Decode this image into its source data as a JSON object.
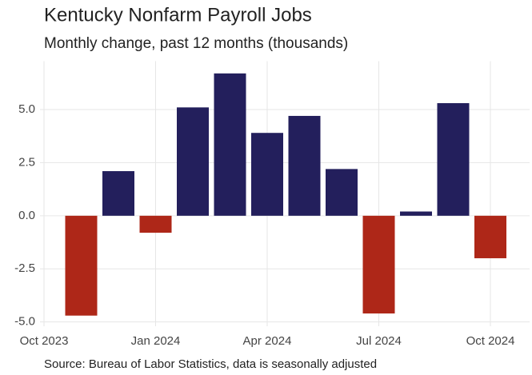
{
  "chart_data": {
    "type": "bar",
    "title": "Kentucky Nonfarm Payroll Jobs",
    "subtitle": "Monthly change, past 12 months (thousands)",
    "caption": "Source: Bureau of Labor Statistics, data is seasonally adjusted",
    "x": [
      "2023-11",
      "2023-12",
      "2024-01",
      "2024-02",
      "2024-03",
      "2024-04",
      "2024-05",
      "2024-06",
      "2024-07",
      "2024-08",
      "2024-09",
      "2024-10"
    ],
    "values": [
      -4.7,
      2.1,
      -0.8,
      5.1,
      6.7,
      3.9,
      4.7,
      2.2,
      -4.6,
      0.2,
      5.3,
      -2.0
    ],
    "positive_color": "#231f5c",
    "negative_color": "#ae2718",
    "xlim": [
      "2023-10",
      "2024-10"
    ],
    "xticks": [
      {
        "value": "2023-10",
        "label": "Oct 2023"
      },
      {
        "value": "2024-01",
        "label": "Jan 2024"
      },
      {
        "value": "2024-04",
        "label": "Apr 2024"
      },
      {
        "value": "2024-07",
        "label": "Jul 2024"
      },
      {
        "value": "2024-10",
        "label": "Oct 2024"
      }
    ],
    "ylim": [
      -5.2,
      6.9
    ],
    "yticks": [
      {
        "value": -5,
        "label": "-5.0"
      },
      {
        "value": -2.5,
        "label": "-2.5"
      },
      {
        "value": 0,
        "label": "0.0"
      },
      {
        "value": 2.5,
        "label": "2.5"
      },
      {
        "value": 5,
        "label": "5.0"
      }
    ],
    "grid": true
  }
}
